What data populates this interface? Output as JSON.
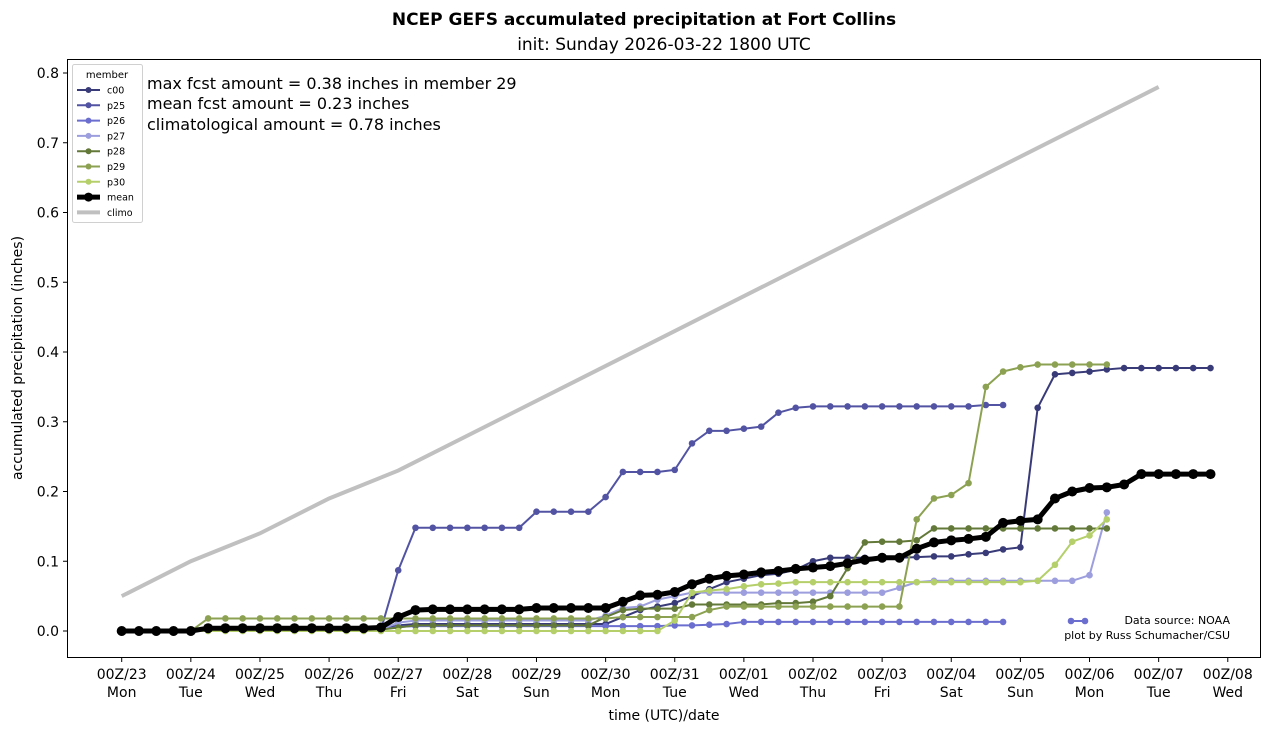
{
  "chart_data": {
    "type": "line",
    "title": "NCEP GEFS accumulated precipitation at Fort Collins",
    "subtitle": "init: Sunday 2026-03-22 1800 UTC",
    "xlabel": "time (UTC)/date",
    "ylabel": "accumulated precipitation (inches)",
    "ylim": [
      -0.04,
      0.82
    ],
    "yticks": [
      "0.0",
      "0.1",
      "0.2",
      "0.3",
      "0.4",
      "0.5",
      "0.6",
      "0.7",
      "0.8"
    ],
    "ytick_values": [
      0,
      0.1,
      0.2,
      0.3,
      0.4,
      0.5,
      0.6,
      0.7,
      0.8
    ],
    "x_units": "6-hour steps from 00Z/23",
    "xlim_days": [
      -0.78,
      16.2
    ],
    "xticks": [
      {
        "top": "00Z/23",
        "bottom": "Mon"
      },
      {
        "top": "00Z/24",
        "bottom": "Tue"
      },
      {
        "top": "00Z/25",
        "bottom": "Wed"
      },
      {
        "top": "00Z/26",
        "bottom": "Thu"
      },
      {
        "top": "00Z/27",
        "bottom": "Fri"
      },
      {
        "top": "00Z/28",
        "bottom": "Sat"
      },
      {
        "top": "00Z/29",
        "bottom": "Sun"
      },
      {
        "top": "00Z/30",
        "bottom": "Mon"
      },
      {
        "top": "00Z/31",
        "bottom": "Tue"
      },
      {
        "top": "00Z/01",
        "bottom": "Wed"
      },
      {
        "top": "00Z/02",
        "bottom": "Thu"
      },
      {
        "top": "00Z/03",
        "bottom": "Fri"
      },
      {
        "top": "00Z/04",
        "bottom": "Sat"
      },
      {
        "top": "00Z/05",
        "bottom": "Sun"
      },
      {
        "top": "00Z/06",
        "bottom": "Mon"
      },
      {
        "top": "00Z/07",
        "bottom": "Tue"
      },
      {
        "top": "00Z/08",
        "bottom": "Wed"
      }
    ],
    "legend": {
      "title": "member",
      "placement": "top-left"
    },
    "annotations": [
      "max fcst amount = 0.38 inches in member 29",
      "mean fcst amount = 0.23 inches",
      "climatological amount = 0.78 inches"
    ],
    "credits": [
      "Data source: NOAA",
      "plot by Russ Schumacher/CSU"
    ],
    "series": [
      {
        "name": "c00",
        "color": "#393b79",
        "style": "member",
        "values": [
          0,
          0,
          0,
          0,
          0,
          0.002,
          0.002,
          0.002,
          0.002,
          0.002,
          0.002,
          0.002,
          0.002,
          0.002,
          0.002,
          0.002,
          0.008,
          0.01,
          0.01,
          0.01,
          0.01,
          0.01,
          0.01,
          0.01,
          0.01,
          0.01,
          0.01,
          0.01,
          0.01,
          0.02,
          0.03,
          0.035,
          0.04,
          0.05,
          0.06,
          0.07,
          0.075,
          0.08,
          0.082,
          0.088,
          0.1,
          0.105,
          0.105,
          0.105,
          0.105,
          0.105,
          0.106,
          0.107,
          0.107,
          0.11,
          0.112,
          0.117,
          0.12,
          0.32,
          0.368,
          0.37,
          0.372,
          0.375,
          0.377,
          0.377,
          0.377,
          0.377,
          0.377,
          0.377
        ]
      },
      {
        "name": "p25",
        "color": "#5254a3",
        "style": "member",
        "values": [
          0,
          0,
          0,
          0,
          0,
          0.002,
          0.002,
          0.002,
          0.002,
          0.002,
          0.002,
          0.002,
          0.002,
          0.002,
          0.002,
          0.002,
          0.087,
          0.148,
          0.148,
          0.148,
          0.148,
          0.148,
          0.148,
          0.148,
          0.171,
          0.171,
          0.171,
          0.171,
          0.192,
          0.228,
          0.228,
          0.228,
          0.231,
          0.269,
          0.287,
          0.287,
          0.29,
          0.293,
          0.313,
          0.32,
          0.322,
          0.322,
          0.322,
          0.322,
          0.322,
          0.322,
          0.322,
          0.322,
          0.322,
          0.322,
          0.324,
          0.324
        ]
      },
      {
        "name": "p26",
        "color": "#6b6ecf",
        "style": "member",
        "values": [
          0,
          0,
          0,
          0,
          0,
          0.002,
          0.002,
          0.002,
          0.002,
          0.002,
          0.002,
          0.002,
          0.002,
          0.002,
          0.002,
          0.002,
          0.006,
          0.007,
          0.007,
          0.007,
          0.007,
          0.007,
          0.007,
          0.007,
          0.007,
          0.007,
          0.007,
          0.007,
          0.007,
          0.007,
          0.007,
          0.007,
          0.008,
          0.008,
          0.009,
          0.01,
          0.013,
          0.013,
          0.013,
          0.013,
          0.013,
          0.013,
          0.013,
          0.013,
          0.013,
          0.013,
          0.013,
          0.013,
          0.013,
          0.013,
          0.013,
          0.013
        ]
      },
      {
        "name": "p27",
        "color": "#9c9ede",
        "style": "member",
        "values": [
          0,
          0,
          0,
          0,
          0,
          0.002,
          0.002,
          0.002,
          0.002,
          0.002,
          0.002,
          0.002,
          0.002,
          0.002,
          0.002,
          0.002,
          0.012,
          0.015,
          0.015,
          0.015,
          0.015,
          0.015,
          0.015,
          0.015,
          0.015,
          0.015,
          0.015,
          0.015,
          0.022,
          0.033,
          0.035,
          0.045,
          0.05,
          0.055,
          0.055,
          0.055,
          0.055,
          0.055,
          0.055,
          0.055,
          0.055,
          0.055,
          0.055,
          0.055,
          0.055,
          0.062,
          0.07,
          0.072,
          0.072,
          0.072,
          0.072,
          0.072,
          0.072,
          0.072,
          0.072,
          0.072,
          0.08,
          0.17
        ]
      },
      {
        "name": "p28",
        "color": "#637939",
        "style": "member",
        "values": [
          0,
          0,
          0,
          0,
          0,
          0.002,
          0.002,
          0.002,
          0.002,
          0.002,
          0.002,
          0.002,
          0.002,
          0.002,
          0.002,
          0.002,
          0.005,
          0.008,
          0.008,
          0.008,
          0.008,
          0.008,
          0.008,
          0.008,
          0.008,
          0.008,
          0.008,
          0.008,
          0.02,
          0.03,
          0.032,
          0.032,
          0.032,
          0.038,
          0.038,
          0.038,
          0.038,
          0.038,
          0.04,
          0.04,
          0.042,
          0.05,
          0.09,
          0.127,
          0.128,
          0.128,
          0.13,
          0.147,
          0.147,
          0.147,
          0.147,
          0.147,
          0.147,
          0.147,
          0.147,
          0.147,
          0.147,
          0.147
        ]
      },
      {
        "name": "p29",
        "color": "#8ca252",
        "style": "member",
        "values": [
          0,
          0,
          0,
          0,
          0,
          0.018,
          0.018,
          0.018,
          0.018,
          0.018,
          0.018,
          0.018,
          0.018,
          0.018,
          0.018,
          0.018,
          0.018,
          0.018,
          0.018,
          0.018,
          0.018,
          0.018,
          0.018,
          0.018,
          0.018,
          0.018,
          0.018,
          0.018,
          0.018,
          0.02,
          0.02,
          0.02,
          0.02,
          0.02,
          0.03,
          0.035,
          0.035,
          0.035,
          0.035,
          0.035,
          0.035,
          0.035,
          0.035,
          0.035,
          0.035,
          0.035,
          0.16,
          0.19,
          0.195,
          0.212,
          0.35,
          0.372,
          0.378,
          0.382,
          0.382,
          0.382,
          0.382,
          0.382
        ]
      },
      {
        "name": "p30",
        "color": "#b5cf6b",
        "style": "member",
        "values": [
          0,
          0,
          0,
          0,
          0,
          0,
          0,
          0,
          0,
          0,
          0,
          0,
          0,
          0,
          0,
          0,
          0,
          0,
          0,
          0,
          0,
          0,
          0,
          0,
          0,
          0,
          0,
          0,
          0,
          0,
          0,
          0,
          0.015,
          0.055,
          0.058,
          0.06,
          0.064,
          0.067,
          0.068,
          0.07,
          0.07,
          0.07,
          0.07,
          0.07,
          0.07,
          0.07,
          0.07,
          0.07,
          0.07,
          0.07,
          0.07,
          0.07,
          0.07,
          0.072,
          0.095,
          0.128,
          0.137,
          0.16
        ]
      },
      {
        "name": "mean",
        "color": "#000000",
        "style": "mean",
        "values": [
          0,
          0,
          0,
          0,
          0,
          0.004,
          0.004,
          0.004,
          0.004,
          0.004,
          0.004,
          0.004,
          0.004,
          0.004,
          0.004,
          0.005,
          0.02,
          0.03,
          0.031,
          0.031,
          0.031,
          0.031,
          0.031,
          0.031,
          0.033,
          0.033,
          0.033,
          0.033,
          0.033,
          0.042,
          0.051,
          0.052,
          0.056,
          0.067,
          0.075,
          0.079,
          0.081,
          0.084,
          0.086,
          0.089,
          0.091,
          0.093,
          0.097,
          0.102,
          0.105,
          0.105,
          0.118,
          0.127,
          0.13,
          0.132,
          0.135,
          0.155,
          0.158,
          0.16,
          0.19,
          0.2,
          0.205,
          0.206,
          0.21,
          0.225,
          0.225,
          0.225,
          0.225,
          0.225
        ]
      },
      {
        "name": "climo",
        "color": "#c0c0c0",
        "style": "climo",
        "days": [
          0,
          1,
          2,
          3,
          4,
          15
        ],
        "values": [
          0.05,
          0.1,
          0.14,
          0.19,
          0.23,
          0.78
        ]
      }
    ]
  }
}
